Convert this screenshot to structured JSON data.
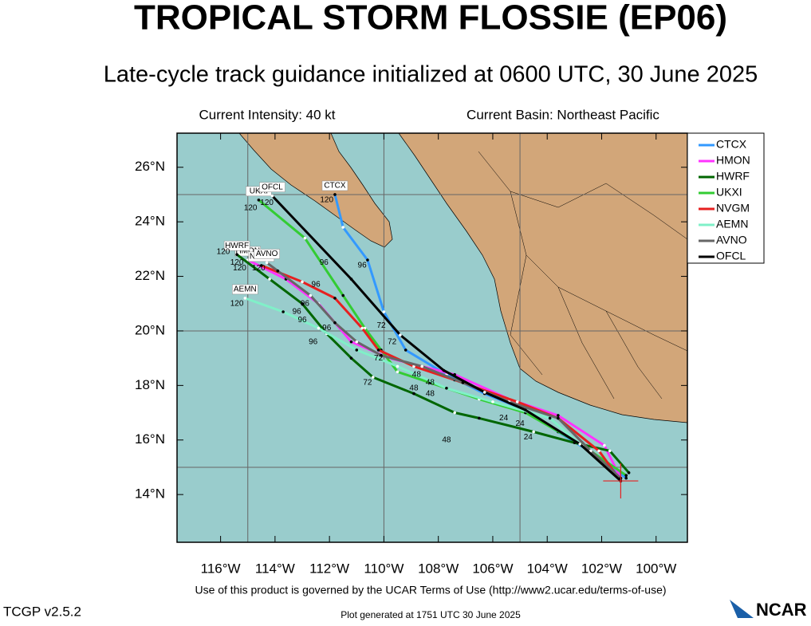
{
  "chart_data": {
    "type": "track_map",
    "title": "TROPICAL STORM FLOSSIE (EP06)",
    "subtitle": "Late-cycle track guidance initialized at 0600 UTC, 30 June 2025",
    "current_intensity": "Current Intensity: 40 kt",
    "current_basin": "Current Basin: Northeast Pacific",
    "terms": "Use of this product is governed by the UCAR Terms of Use (http://www2.ucar.edu/terms-of-use)",
    "version": "TCGP v2.5.2",
    "generated": "Plot generated at 1751 UTC   30 June 2025",
    "logo": "NCAR",
    "xlim": [
      -117.6,
      -98.85
    ],
    "ylim": [
      12.25,
      27.25
    ],
    "xticks": [
      {
        "value": -116,
        "label": "116°W"
      },
      {
        "value": -114,
        "label": "114°W"
      },
      {
        "value": -112,
        "label": "112°W"
      },
      {
        "value": -110,
        "label": "110°W"
      },
      {
        "value": -108,
        "label": "108°W"
      },
      {
        "value": -106,
        "label": "106°W"
      },
      {
        "value": -104,
        "label": "104°W"
      },
      {
        "value": -102,
        "label": "102°W"
      },
      {
        "value": -100,
        "label": "100°W"
      }
    ],
    "yticks": [
      {
        "value": 14,
        "label": "14°N"
      },
      {
        "value": 16,
        "label": "16°N"
      },
      {
        "value": 18,
        "label": "18°N"
      },
      {
        "value": 20,
        "label": "20°N"
      },
      {
        "value": 22,
        "label": "22°N"
      },
      {
        "value": 24,
        "label": "24°N"
      },
      {
        "value": 26,
        "label": "26°N"
      }
    ],
    "grid_lon": [
      -115,
      -110,
      -105
    ],
    "grid_lat": [
      25,
      20,
      15
    ],
    "initial_position": {
      "lon": -101.3,
      "lat": 14.5
    },
    "series": [
      {
        "name": "CTCX",
        "color": "#3399ff",
        "lon": [
          -101.1,
          -102.3,
          -103.6,
          -104.8,
          -106.3,
          -107.7,
          -109.2,
          -110.0,
          -110.6,
          -111.5,
          -111.8
        ],
        "lat": [
          14.6,
          15.5,
          16.3,
          17.1,
          17.7,
          18.4,
          19.3,
          20.7,
          22.6,
          23.8,
          25.0
        ]
      },
      {
        "name": "HMON",
        "color": "#ff33ff",
        "lon": [
          -101.3,
          -101.9,
          -103.6,
          -105.4,
          -107.4,
          -109.8,
          -111.2,
          -112.4,
          -113.6,
          -115.0
        ],
        "lat": [
          14.6,
          15.8,
          16.9,
          17.5,
          18.4,
          19.0,
          19.6,
          21.0,
          21.9,
          22.6
        ]
      },
      {
        "name": "HWRF",
        "color": "#006600",
        "lon": [
          -101.0,
          -101.7,
          -103.0,
          -104.5,
          -106.5,
          -107.4,
          -108.9,
          -110.4,
          -111.2,
          -112.1,
          -113.0,
          -114.2,
          -115.4
        ],
        "lat": [
          14.8,
          15.6,
          15.9,
          16.3,
          16.8,
          17.0,
          17.7,
          18.3,
          19.0,
          19.9,
          21.0,
          21.9,
          22.8
        ]
      },
      {
        "name": "UKXI",
        "color": "#33cc33",
        "lon": [
          -101.1,
          -102.7,
          -104.8,
          -106.5,
          -108.3,
          -109.5,
          -110.1,
          -110.7,
          -111.5,
          -112.9,
          -114.6
        ],
        "lat": [
          14.7,
          15.8,
          17.0,
          17.5,
          18.1,
          18.5,
          19.3,
          20.1,
          21.3,
          23.4,
          24.8
        ]
      },
      {
        "name": "NVGM",
        "color": "#e62020",
        "lon": [
          -101.3,
          -102.1,
          -103.6,
          -105.1,
          -107.4,
          -108.9,
          -110.2,
          -110.8,
          -111.8,
          -113.0,
          -114.5
        ],
        "lat": [
          14.5,
          15.6,
          16.8,
          17.4,
          18.2,
          18.7,
          19.3,
          20.1,
          21.2,
          21.8,
          22.4
        ]
      },
      {
        "name": "AEMN",
        "color": "#80f0c8",
        "lon": [
          -101.3,
          -102.4,
          -103.9,
          -106.0,
          -107.7,
          -109.5,
          -111.0,
          -112.4,
          -113.7,
          -115.1
        ],
        "lat": [
          14.6,
          15.5,
          16.8,
          17.4,
          17.9,
          18.7,
          19.3,
          20.1,
          20.7,
          21.2
        ]
      },
      {
        "name": "AVNO",
        "color": "#666666",
        "lon": [
          -101.3,
          -102.4,
          -103.6,
          -105.4,
          -107.1,
          -108.6,
          -110.1,
          -111.0,
          -111.8,
          -112.7,
          -113.9,
          -114.3
        ],
        "lat": [
          14.6,
          15.6,
          16.8,
          17.4,
          18.1,
          18.7,
          19.1,
          19.6,
          20.3,
          21.3,
          22.2,
          22.5
        ]
      },
      {
        "name": "OFCL",
        "color": "#000000",
        "lon": [
          -101.3,
          -102.8,
          -104.8,
          -106.3,
          -107.8,
          -109.4,
          -111.2,
          -114.1
        ],
        "lat": [
          14.5,
          15.85,
          17.1,
          17.75,
          18.55,
          19.85,
          21.9,
          24.95
        ]
      }
    ],
    "hour_labels": [
      {
        "hour": 120,
        "lon": -114.9,
        "lat": 24.5
      },
      {
        "hour": 120,
        "lon": -114.3,
        "lat": 24.7
      },
      {
        "hour": 120,
        "lon": -115.9,
        "lat": 22.9
      },
      {
        "hour": 120,
        "lon": -115.4,
        "lat": 22.5
      },
      {
        "hour": 120,
        "lon": -115.3,
        "lat": 22.3
      },
      {
        "hour": 120,
        "lon": -114.6,
        "lat": 22.3
      },
      {
        "hour": 120,
        "lon": -115.4,
        "lat": 21.0
      },
      {
        "hour": 120,
        "lon": -112.1,
        "lat": 24.8
      },
      {
        "hour": 96,
        "lon": -112.2,
        "lat": 22.5
      },
      {
        "hour": 96,
        "lon": -110.8,
        "lat": 22.4
      },
      {
        "hour": 96,
        "lon": -112.5,
        "lat": 21.7
      },
      {
        "hour": 96,
        "lon": -112.9,
        "lat": 21.0
      },
      {
        "hour": 96,
        "lon": -113.2,
        "lat": 20.7
      },
      {
        "hour": 96,
        "lon": -113.0,
        "lat": 20.4
      },
      {
        "hour": 96,
        "lon": -112.1,
        "lat": 20.1
      },
      {
        "hour": 96,
        "lon": -112.6,
        "lat": 19.6
      },
      {
        "hour": 72,
        "lon": -110.1,
        "lat": 20.2
      },
      {
        "hour": 72,
        "lon": -109.7,
        "lat": 19.6
      },
      {
        "hour": 72,
        "lon": -110.6,
        "lat": 18.1
      },
      {
        "hour": 72,
        "lon": -110.2,
        "lat": 19.0
      },
      {
        "hour": 48,
        "lon": -108.8,
        "lat": 18.4
      },
      {
        "hour": 48,
        "lon": -108.3,
        "lat": 18.1
      },
      {
        "hour": 48,
        "lon": -108.9,
        "lat": 17.9
      },
      {
        "hour": 48,
        "lon": -108.3,
        "lat": 17.7
      },
      {
        "hour": 48,
        "lon": -107.7,
        "lat": 16.0
      },
      {
        "hour": 24,
        "lon": -105.6,
        "lat": 16.8
      },
      {
        "hour": 24,
        "lon": -104.7,
        "lat": 16.1
      },
      {
        "hour": 24,
        "lon": -105.0,
        "lat": 16.6
      }
    ]
  }
}
